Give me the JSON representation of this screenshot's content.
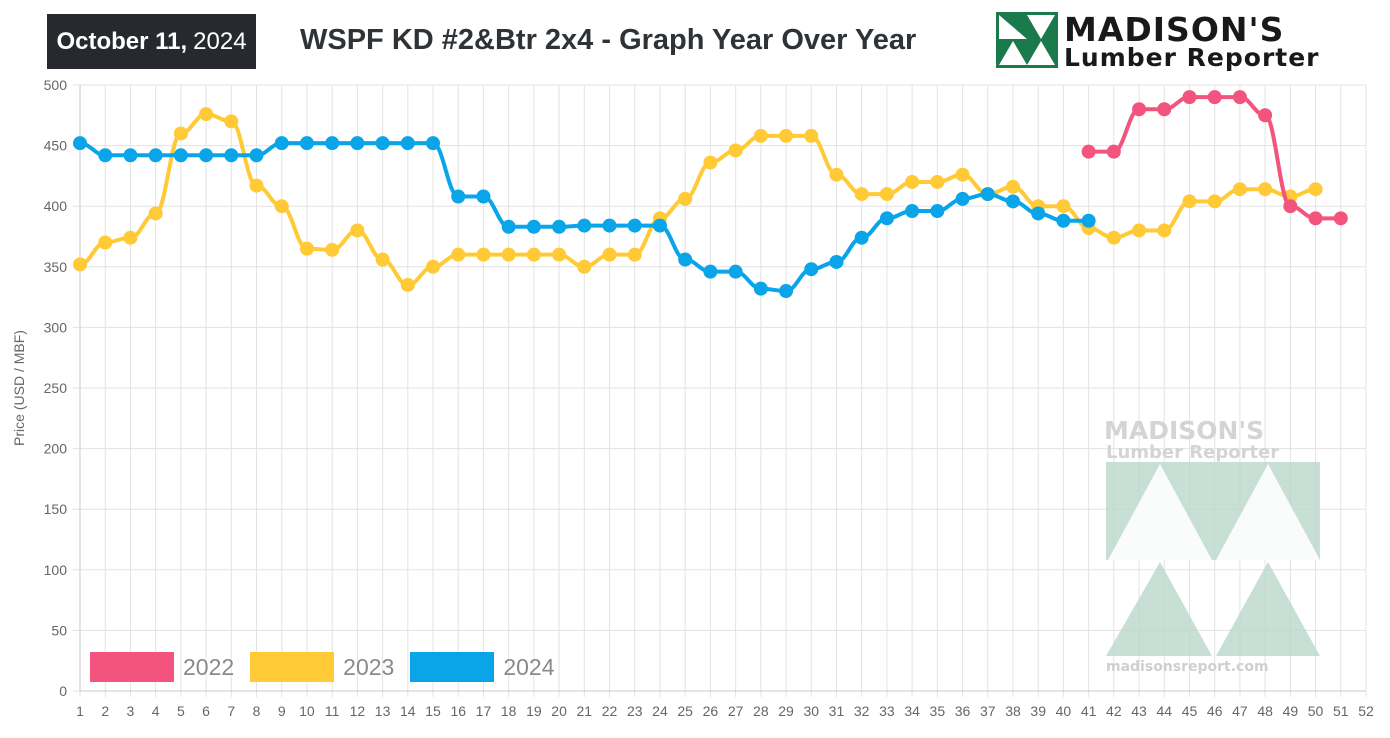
{
  "header": {
    "date_bold": "October 11,",
    "date_year": "2024",
    "title": "WSPF KD #2&Btr 2x4 - Graph Year Over Year"
  },
  "brand": {
    "name": "MADISON'S",
    "sub": "Lumber Reporter",
    "color": "#1a7a4c"
  },
  "watermark": {
    "name": "MADISON'S",
    "sub": "Lumber Reporter",
    "url": "madisonsreport.com"
  },
  "chart_data": {
    "type": "line",
    "title": "WSPF KD #2&Btr 2x4 - Graph Year Over Year",
    "xlabel": "",
    "ylabel": "Price (USD / MBF)",
    "xlim": [
      1,
      52
    ],
    "ylim": [
      0,
      500
    ],
    "y_ticks": [
      0,
      50,
      100,
      150,
      200,
      250,
      300,
      350,
      400,
      450,
      500
    ],
    "x_ticks": [
      1,
      2,
      3,
      4,
      5,
      6,
      7,
      8,
      9,
      10,
      11,
      12,
      13,
      14,
      15,
      16,
      17,
      18,
      19,
      20,
      21,
      22,
      23,
      24,
      25,
      26,
      27,
      28,
      29,
      30,
      31,
      32,
      33,
      34,
      35,
      36,
      37,
      38,
      39,
      40,
      41,
      42,
      43,
      44,
      45,
      46,
      47,
      48,
      49,
      50,
      51,
      52
    ],
    "grid": true,
    "legend_position": "bottom-left",
    "series": [
      {
        "name": "2022",
        "color": "#f2547d",
        "x": [
          41,
          42,
          43,
          44,
          45,
          46,
          47,
          48,
          49,
          50,
          51
        ],
        "values": [
          445,
          445,
          480,
          480,
          490,
          490,
          490,
          475,
          400,
          390,
          390
        ]
      },
      {
        "name": "2023",
        "color": "#ffca36",
        "x": [
          1,
          2,
          3,
          4,
          5,
          6,
          7,
          8,
          9,
          10,
          11,
          12,
          13,
          14,
          15,
          16,
          17,
          18,
          19,
          20,
          21,
          22,
          23,
          24,
          25,
          26,
          27,
          28,
          29,
          30,
          31,
          32,
          33,
          34,
          35,
          36,
          37,
          38,
          39,
          40,
          41,
          42,
          43,
          44,
          45,
          46,
          47,
          48,
          49,
          50
        ],
        "values": [
          352,
          370,
          374,
          394,
          460,
          476,
          470,
          417,
          400,
          365,
          364,
          380,
          356,
          335,
          350,
          360,
          360,
          360,
          360,
          360,
          350,
          360,
          360,
          390,
          406,
          436,
          446,
          458,
          458,
          458,
          426,
          410,
          410,
          420,
          420,
          426,
          410,
          416,
          400,
          400,
          382,
          374,
          380,
          380,
          404,
          404,
          414,
          414,
          408,
          414
        ]
      },
      {
        "name": "2024",
        "color": "#0aa5e8",
        "x": [
          1,
          2,
          3,
          4,
          5,
          6,
          7,
          8,
          9,
          10,
          11,
          12,
          13,
          14,
          15,
          16,
          17,
          18,
          19,
          20,
          21,
          22,
          23,
          24,
          25,
          26,
          27,
          28,
          29,
          30,
          31,
          32,
          33,
          34,
          35,
          36,
          37,
          38,
          39,
          40,
          41
        ],
        "values": [
          452,
          442,
          442,
          442,
          442,
          442,
          442,
          442,
          452,
          452,
          452,
          452,
          452,
          452,
          452,
          408,
          408,
          383,
          383,
          383,
          384,
          384,
          384,
          384,
          356,
          346,
          346,
          332,
          330,
          348,
          354,
          374,
          390,
          396,
          396,
          406,
          410,
          404,
          394,
          388,
          388
        ]
      }
    ]
  }
}
